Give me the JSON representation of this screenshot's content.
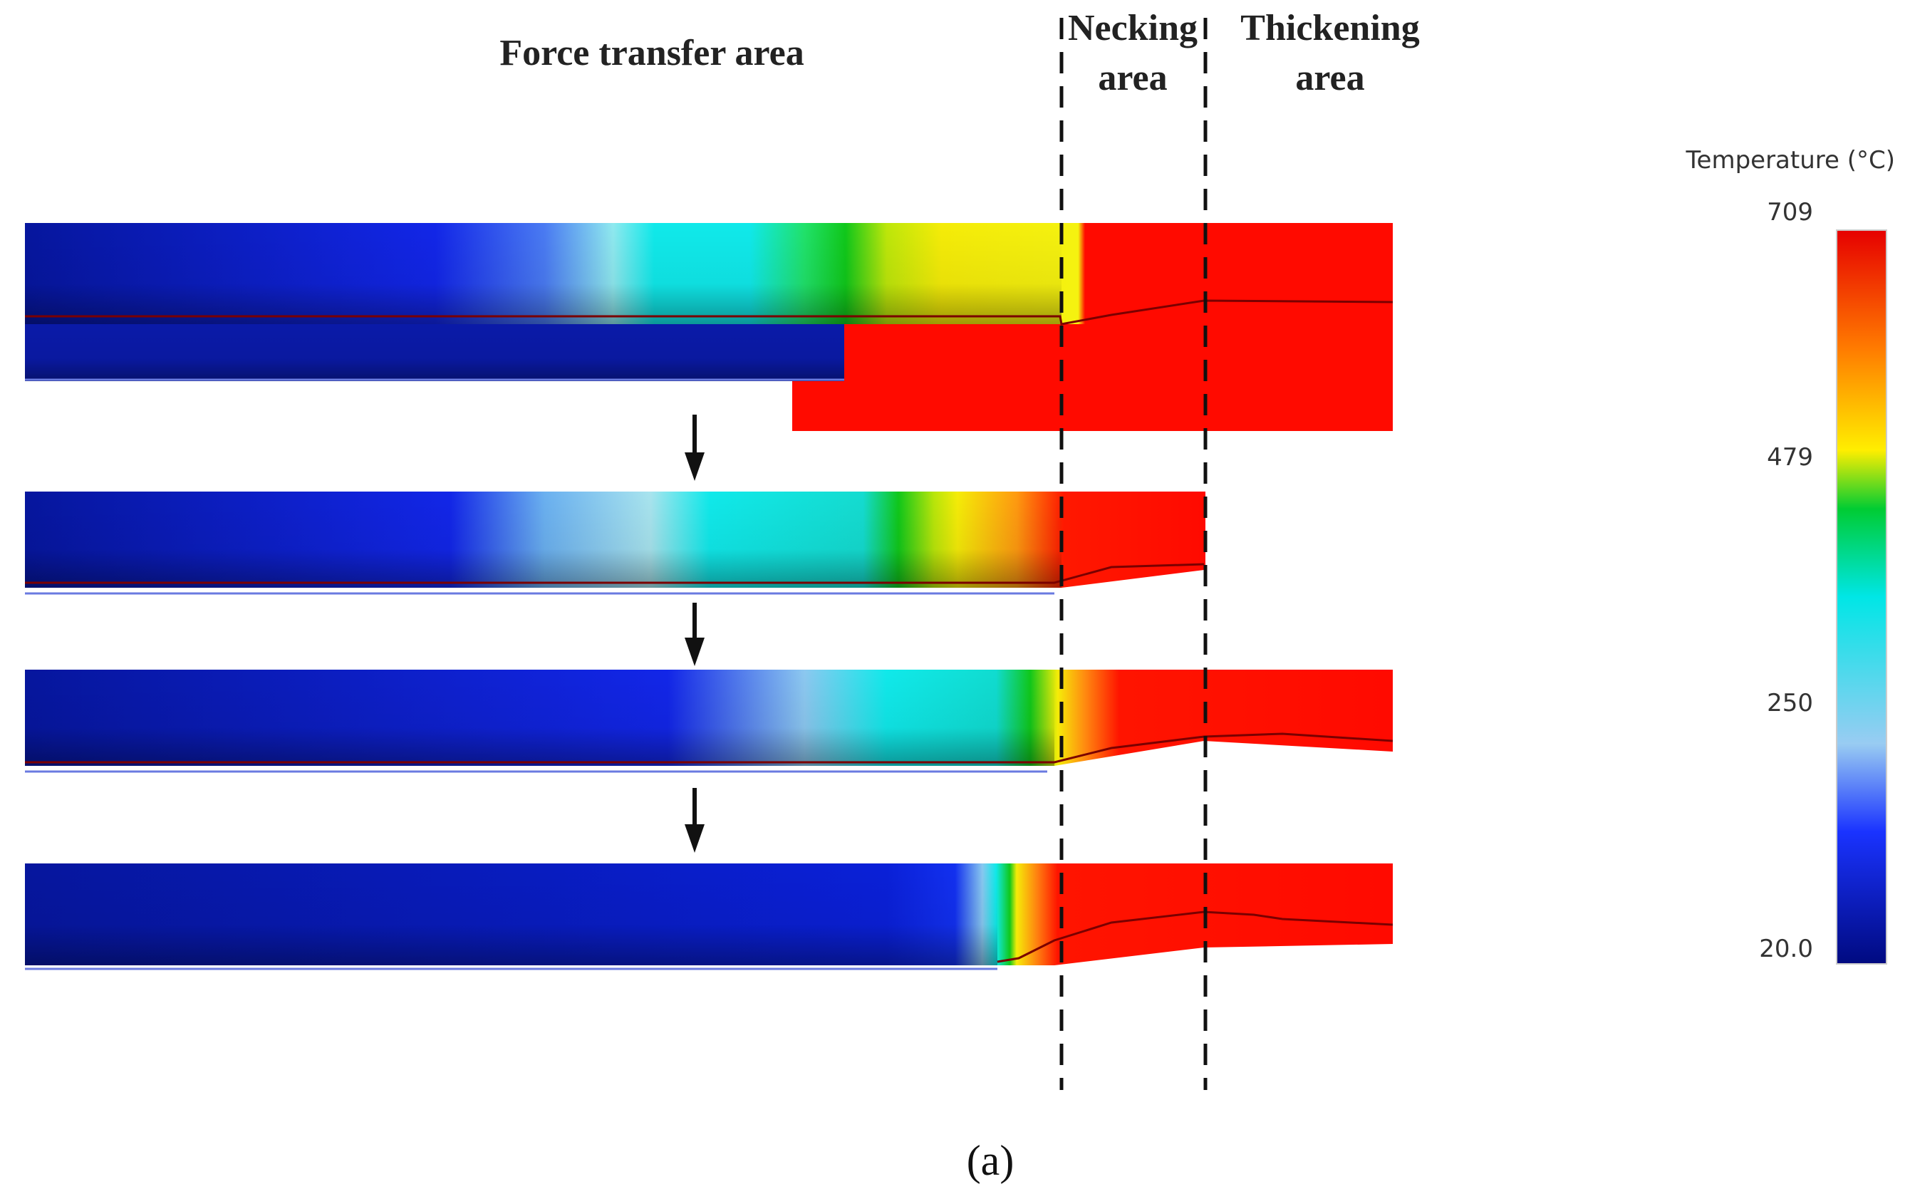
{
  "labels": {
    "force_transfer": "Force transfer area",
    "necking_line1": "Necking",
    "necking_line2": "area",
    "thickening_line1": "Thickening",
    "thickening_line2": "area"
  },
  "legend": {
    "title": "Temperature (°C)",
    "max": "709",
    "mid_high": "479",
    "mid_low": "250",
    "min": "20.0",
    "colors": [
      "#e60000",
      "#ff8800",
      "#ffee00",
      "#00cc33",
      "#00e6e6",
      "#99ccf2",
      "#1a33ff",
      "#000a80"
    ]
  },
  "caption": "(a)",
  "diagram": {
    "stages": 4,
    "arrows": 3,
    "boundary_lines": 2
  }
}
